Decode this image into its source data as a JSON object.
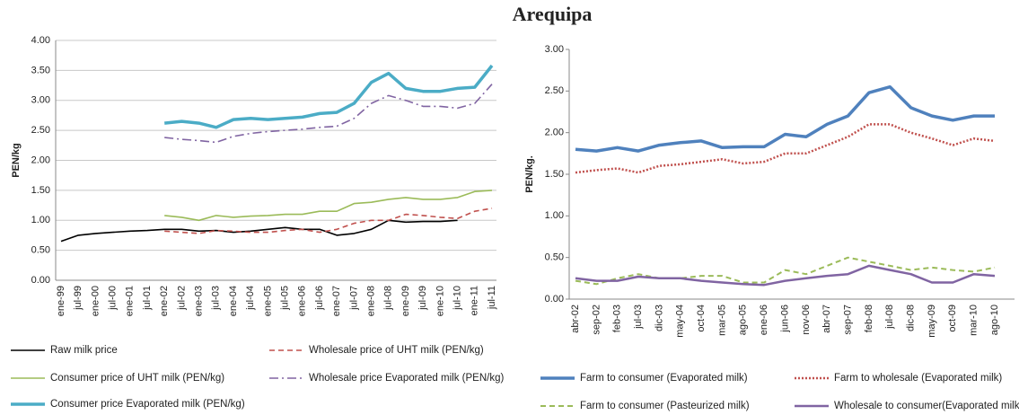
{
  "title": "Arequipa",
  "chart_data": [
    {
      "type": "line",
      "y_label": "PEN/kg",
      "grid": true,
      "categories": [
        "ene-99",
        "jul-99",
        "ene-00",
        "jul-00",
        "ene-01",
        "jul-01",
        "ene-02",
        "jul-02",
        "ene-03",
        "jul-03",
        "ene-04",
        "jul-04",
        "ene-05",
        "jul-05",
        "ene-06",
        "jul-06",
        "ene-07",
        "jul-07",
        "ene-08",
        "jul-08",
        "ene-09",
        "jul-09",
        "ene-10",
        "jul-10",
        "ene-11",
        "jul-11"
      ],
      "ylim": [
        0,
        4
      ],
      "yticks": [
        {
          "value": 0,
          "label": "0.00"
        },
        {
          "value": 0.5,
          "label": "0.50"
        },
        {
          "value": 1,
          "label": "1.00"
        },
        {
          "value": 1.5,
          "label": "1.50"
        },
        {
          "value": 2,
          "label": "2.00"
        },
        {
          "value": 2.5,
          "label": "2.50"
        },
        {
          "value": 3,
          "label": "3.00"
        },
        {
          "value": 3.5,
          "label": "3.50"
        },
        {
          "value": 4,
          "label": "4.00"
        }
      ],
      "series": [
        {
          "name": "Raw milk price",
          "color": "#000000",
          "style": "solid",
          "width": 1.6,
          "values": [
            0.65,
            0.75,
            0.78,
            0.8,
            0.82,
            0.83,
            0.85,
            0.85,
            0.82,
            0.83,
            0.8,
            0.82,
            0.85,
            0.88,
            0.85,
            0.85,
            0.75,
            0.78,
            0.85,
            1.0,
            0.97,
            0.98,
            0.98,
            1.0,
            null,
            null
          ]
        },
        {
          "name": "Wholesale price of  UHT milk (PEN/kg)",
          "color": "#c0504d",
          "style": "dashed",
          "width": 1.6,
          "values": [
            null,
            null,
            null,
            null,
            null,
            null,
            0.82,
            0.8,
            0.78,
            0.83,
            0.82,
            0.8,
            0.8,
            0.83,
            0.85,
            0.8,
            0.85,
            0.95,
            1.0,
            1.0,
            1.1,
            1.08,
            1.05,
            1.03,
            1.15,
            1.2
          ]
        },
        {
          "name": "Consumer price of  UHT milk (PEN/kg)",
          "color": "#9bbb59",
          "style": "solid",
          "width": 1.6,
          "values": [
            null,
            null,
            null,
            null,
            null,
            null,
            1.08,
            1.05,
            1.0,
            1.08,
            1.05,
            1.07,
            1.08,
            1.1,
            1.1,
            1.15,
            1.15,
            1.28,
            1.3,
            1.35,
            1.38,
            1.35,
            1.35,
            1.38,
            1.48,
            1.5
          ]
        },
        {
          "name": "Wholesale price Evaporated milk (PEN/kg)",
          "color": "#8064a2",
          "style": "dashdot",
          "width": 1.6,
          "values": [
            null,
            null,
            null,
            null,
            null,
            null,
            2.38,
            2.35,
            2.33,
            2.3,
            2.4,
            2.45,
            2.48,
            2.5,
            2.52,
            2.55,
            2.57,
            2.7,
            2.95,
            3.08,
            3.0,
            2.9,
            2.9,
            2.87,
            2.95,
            3.27
          ]
        },
        {
          "name": "Consumer price Evaporated milk (PEN/kg)",
          "color": "#4bacc6",
          "style": "solid",
          "width": 3.5,
          "values": [
            null,
            null,
            null,
            null,
            null,
            null,
            2.62,
            2.65,
            2.62,
            2.55,
            2.68,
            2.7,
            2.68,
            2.7,
            2.72,
            2.78,
            2.8,
            2.95,
            3.3,
            3.45,
            3.2,
            3.15,
            3.15,
            3.2,
            3.22,
            3.58
          ]
        }
      ]
    },
    {
      "type": "line",
      "y_label": "PEN/kg.",
      "grid": false,
      "categories": [
        "abr-02",
        "sep-02",
        "feb-03",
        "jul-03",
        "dic-03",
        "may-04",
        "oct-04",
        "mar-05",
        "ago-05",
        "ene-06",
        "jun-06",
        "nov-06",
        "abr-07",
        "sep-07",
        "feb-08",
        "jul-08",
        "dic-08",
        "may-09",
        "oct-09",
        "mar-10",
        "ago-10"
      ],
      "ylim": [
        0,
        3
      ],
      "yticks": [
        {
          "value": 0,
          "label": "0.00"
        },
        {
          "value": 0.5,
          "label": "0.50"
        },
        {
          "value": 1,
          "label": "1.00"
        },
        {
          "value": 1.5,
          "label": "1.50"
        },
        {
          "value": 2,
          "label": "2.00"
        },
        {
          "value": 2.5,
          "label": "2.50"
        },
        {
          "value": 3,
          "label": "3.00"
        }
      ],
      "series": [
        {
          "name": "Farm to consumer (Evaporated milk)",
          "color": "#4f81bd",
          "style": "solid",
          "width": 3.5,
          "values": [
            1.8,
            1.78,
            1.82,
            1.78,
            1.85,
            1.88,
            1.9,
            1.82,
            1.83,
            1.83,
            1.98,
            1.95,
            2.1,
            2.2,
            2.48,
            2.55,
            2.3,
            2.2,
            2.15,
            2.2,
            2.2
          ]
        },
        {
          "name": "Farm to wholesale  (Evaporated milk)",
          "color": "#c0504d",
          "style": "dotted",
          "width": 2.5,
          "values": [
            1.52,
            1.55,
            1.57,
            1.52,
            1.6,
            1.62,
            1.65,
            1.68,
            1.63,
            1.65,
            1.75,
            1.75,
            1.85,
            1.95,
            2.1,
            2.1,
            2.0,
            1.93,
            1.85,
            1.93,
            1.9
          ]
        },
        {
          "name": "Farm to consumer (Pasteurized milk)",
          "color": "#9bbb59",
          "style": "dashed",
          "width": 2,
          "values": [
            0.22,
            0.18,
            0.25,
            0.3,
            0.25,
            0.25,
            0.28,
            0.28,
            0.2,
            0.2,
            0.35,
            0.3,
            0.4,
            0.5,
            0.45,
            0.4,
            0.35,
            0.38,
            0.35,
            0.33,
            0.38
          ]
        },
        {
          "name": "Wholesale to consumer(Evaporated milk)",
          "color": "#8064a2",
          "style": "solid",
          "width": 2.5,
          "values": [
            0.25,
            0.22,
            0.22,
            0.27,
            0.25,
            0.25,
            0.22,
            0.2,
            0.18,
            0.17,
            0.22,
            0.25,
            0.28,
            0.3,
            0.4,
            0.35,
            0.3,
            0.2,
            0.2,
            0.3,
            0.28
          ]
        }
      ]
    }
  ]
}
